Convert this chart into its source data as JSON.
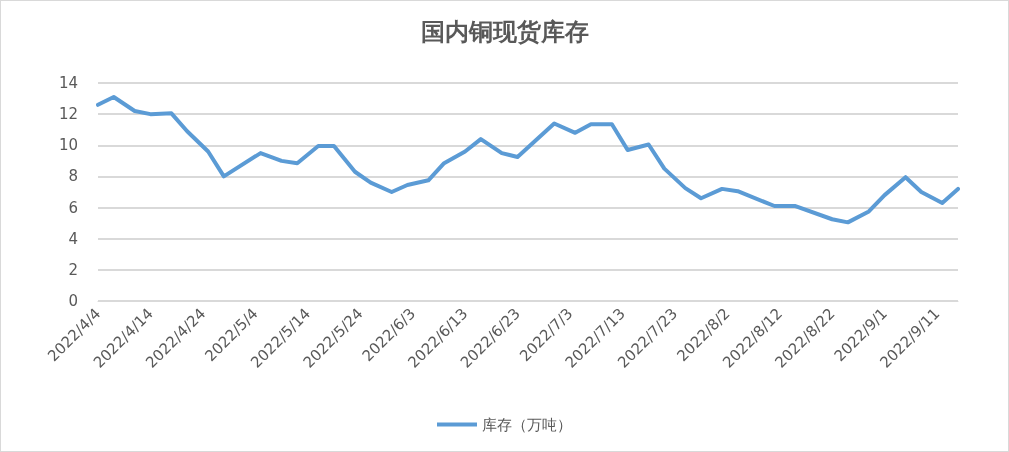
{
  "chart_data": {
    "type": "line",
    "title": "国内铜现货库存",
    "x": [
      "2022-04-04",
      "2022-04-07",
      "2022-04-11",
      "2022-04-14",
      "2022-04-18",
      "2022-04-21",
      "2022-04-25",
      "2022-04-28",
      "2022-05-05",
      "2022-05-09",
      "2022-05-12",
      "2022-05-16",
      "2022-05-19",
      "2022-05-23",
      "2022-05-26",
      "2022-05-30",
      "2022-06-02",
      "2022-06-06",
      "2022-06-09",
      "2022-06-13",
      "2022-06-16",
      "2022-06-20",
      "2022-06-23",
      "2022-06-30",
      "2022-07-04",
      "2022-07-07",
      "2022-07-11",
      "2022-07-14",
      "2022-07-18",
      "2022-07-21",
      "2022-07-25",
      "2022-07-28",
      "2022-08-01",
      "2022-08-04",
      "2022-08-11",
      "2022-08-15",
      "2022-08-22",
      "2022-08-25",
      "2022-08-29",
      "2022-09-01",
      "2022-09-05",
      "2022-09-08",
      "2022-09-12",
      "2022-09-15"
    ],
    "series": [
      {
        "name": "库存（万吨）",
        "color": "#5b9bd5",
        "values": [
          12.6,
          13.1,
          12.2,
          12.0,
          12.05,
          10.9,
          9.6,
          8.0,
          9.5,
          9.0,
          8.85,
          9.95,
          9.95,
          8.3,
          7.6,
          7.0,
          7.45,
          7.75,
          8.85,
          9.6,
          10.4,
          9.5,
          9.25,
          11.4,
          10.8,
          11.35,
          11.35,
          9.7,
          10.05,
          8.5,
          7.25,
          6.6,
          7.2,
          7.05,
          6.1,
          6.1,
          5.25,
          5.05,
          5.75,
          6.8,
          7.95,
          7.0,
          6.3,
          7.2
        ]
      }
    ],
    "xlim": [
      "2022-04-04",
      "2022-09-15"
    ],
    "xticks": [
      {
        "value": "2022-04-04",
        "label": "2022/4/4"
      },
      {
        "value": "2022-04-14",
        "label": "2022/4/14"
      },
      {
        "value": "2022-04-24",
        "label": "2022/4/24"
      },
      {
        "value": "2022-05-04",
        "label": "2022/5/4"
      },
      {
        "value": "2022-05-14",
        "label": "2022/5/14"
      },
      {
        "value": "2022-05-24",
        "label": "2022/5/24"
      },
      {
        "value": "2022-06-03",
        "label": "2022/6/3"
      },
      {
        "value": "2022-06-13",
        "label": "2022/6/13"
      },
      {
        "value": "2022-06-23",
        "label": "2022/6/23"
      },
      {
        "value": "2022-07-03",
        "label": "2022/7/3"
      },
      {
        "value": "2022-07-13",
        "label": "2022/7/13"
      },
      {
        "value": "2022-07-23",
        "label": "2022/7/23"
      },
      {
        "value": "2022-08-02",
        "label": "2022/8/2"
      },
      {
        "value": "2022-08-12",
        "label": "2022/8/12"
      },
      {
        "value": "2022-08-22",
        "label": "2022/8/22"
      },
      {
        "value": "2022-09-01",
        "label": "2022/9/1"
      },
      {
        "value": "2022-09-11",
        "label": "2022/9/11"
      }
    ],
    "ylim": [
      0,
      14
    ],
    "yticks": [
      0,
      2,
      4,
      6,
      8,
      10,
      12,
      14
    ],
    "grid": "y",
    "legend": "bottom",
    "marker": "none",
    "line_style": "solid"
  }
}
